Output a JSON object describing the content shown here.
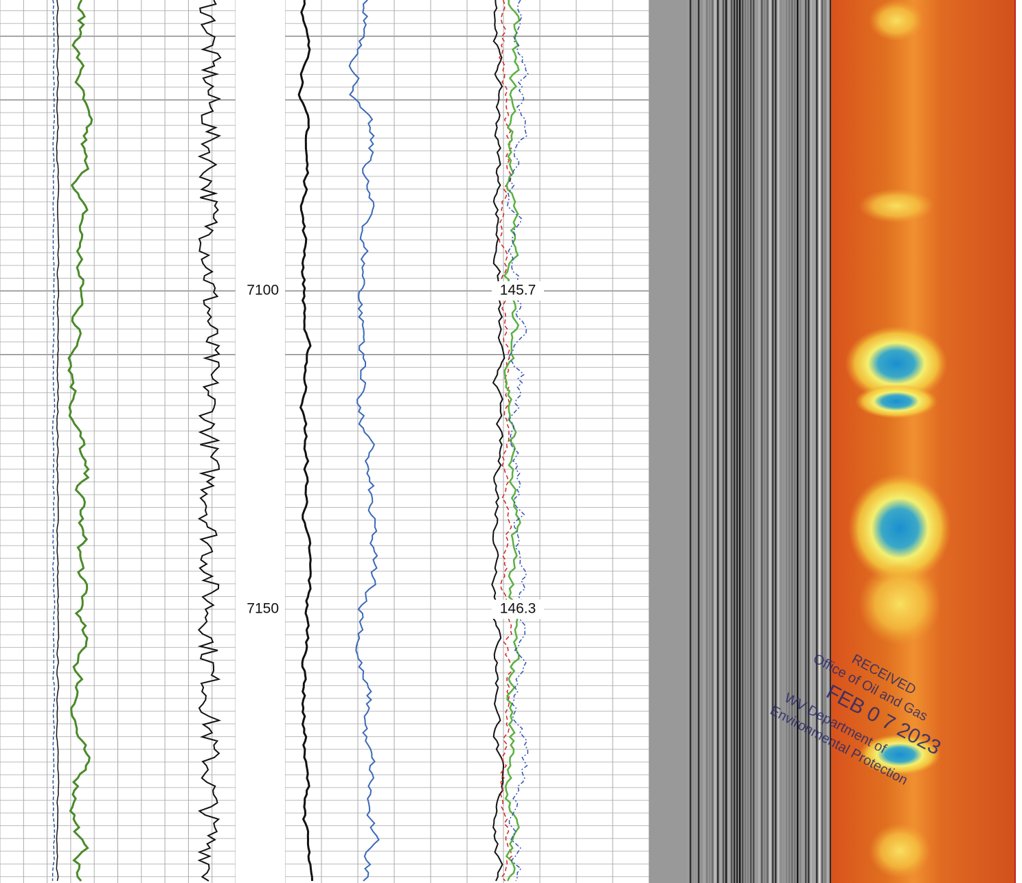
{
  "depth_labels": [
    "7100",
    "7150"
  ],
  "readings": [
    "145.7",
    "146.3"
  ],
  "stamp": {
    "line1": "RECEIVED",
    "line2": "Office of Oil and Gas",
    "line3": "FEB 0 7 2023",
    "line4": "WV Department of",
    "line5": "Environmental Protection"
  }
}
